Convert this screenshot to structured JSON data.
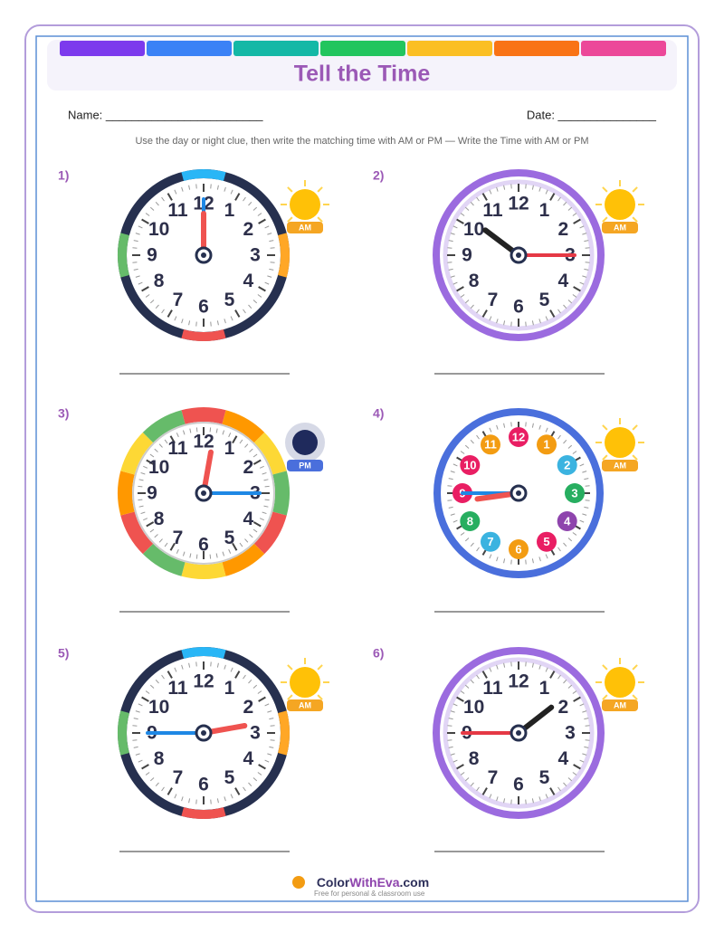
{
  "header": {
    "title": "Tell the Time",
    "name_label": "Name: ________________________",
    "date_label": "Date: _______________",
    "instructions": "Use the day or night clue, then write the matching time with AM or PM — Write the Time with AM or PM"
  },
  "clock_numerals": [
    "12",
    "1",
    "2",
    "3",
    "4",
    "5",
    "6",
    "7",
    "8",
    "9",
    "10",
    "11"
  ],
  "clocks": [
    {
      "label": "1)",
      "badge": "AM"
    },
    {
      "label": "2)",
      "badge": "AM"
    },
    {
      "label": "3)",
      "badge": "PM"
    },
    {
      "label": "4)",
      "badge": "AM"
    },
    {
      "label": "5)",
      "badge": "AM"
    },
    {
      "label": "6)",
      "badge": "AM"
    }
  ],
  "footer": {
    "brand_parts": [
      "Color",
      "WithEva",
      ".com"
    ],
    "tagline": "Free for personal & classroom use"
  }
}
